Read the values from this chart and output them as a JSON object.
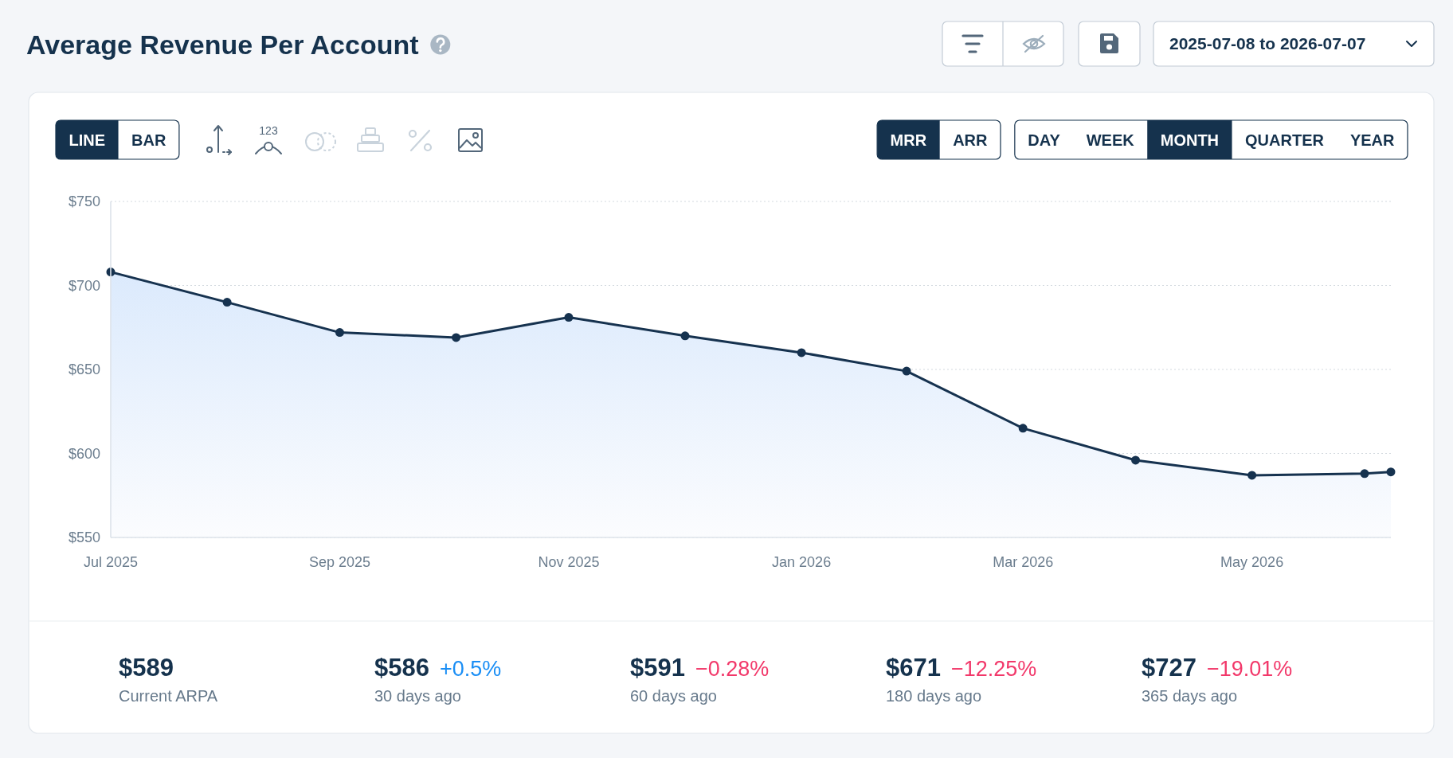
{
  "chart_data": [
    {
      "type": "area",
      "title": "Average Revenue Per Account",
      "x": [
        "2025-07-31",
        "2025-08-31",
        "2025-09-30",
        "2025-10-31",
        "2025-11-30",
        "2025-12-31",
        "2026-01-31",
        "2026-02-28",
        "2026-03-31",
        "2026-04-30",
        "2026-05-31",
        "2026-06-30",
        "2026-07-07"
      ],
      "series": [
        {
          "color": "#16324f",
          "values": [
            708,
            690,
            672,
            669,
            681,
            670,
            660,
            649,
            615,
            596,
            587,
            588,
            589
          ]
        }
      ],
      "xlim": [
        "2025-07-31",
        "2026-07-07"
      ],
      "xticks": [
        {
          "value": "2025-07-31",
          "label": "Jul 2025"
        },
        {
          "value": "2025-09-30",
          "label": "Sep 2025"
        },
        {
          "value": "2025-11-30",
          "label": "Nov 2025"
        },
        {
          "value": "2026-01-31",
          "label": "Jan 2026"
        },
        {
          "value": "2026-03-31",
          "label": "Mar 2026"
        },
        {
          "value": "2026-05-31",
          "label": "May 2026"
        }
      ],
      "ylim": [
        550,
        750
      ],
      "yticks": [
        {
          "value": 550,
          "label": "$550"
        },
        {
          "value": 600,
          "label": "$600"
        },
        {
          "value": 650,
          "label": "$650"
        },
        {
          "value": 700,
          "label": "$700"
        },
        {
          "value": 750,
          "label": "$750"
        }
      ],
      "grid": "y",
      "marker": "circle",
      "annotations": [
        "2025-07-08 to 2026-07-07",
        "LINE",
        "BAR",
        "123",
        "MRR",
        "ARR",
        "DAY",
        "WEEK",
        "MONTH",
        "QUARTER",
        "YEAR"
      ]
    },
    {
      "type": "other",
      "annotations": [
        "$589",
        "Current ARPA",
        "$586",
        "+0.5%",
        "30 days ago",
        "$591",
        "−0.28%",
        "60 days ago",
        "$671",
        "−12.25%",
        "180 days ago",
        "$727",
        "−19.01%",
        "365 days ago"
      ],
      "colors": [
        "#15324d",
        "#66798b",
        "#15324d",
        "#1a8ef5",
        "#66798b",
        "#15324d",
        "#f2386a",
        "#66798b",
        "#15324d",
        "#f2386a",
        "#66798b",
        "#15324d",
        "#f2386a",
        "#66798b"
      ]
    }
  ]
}
